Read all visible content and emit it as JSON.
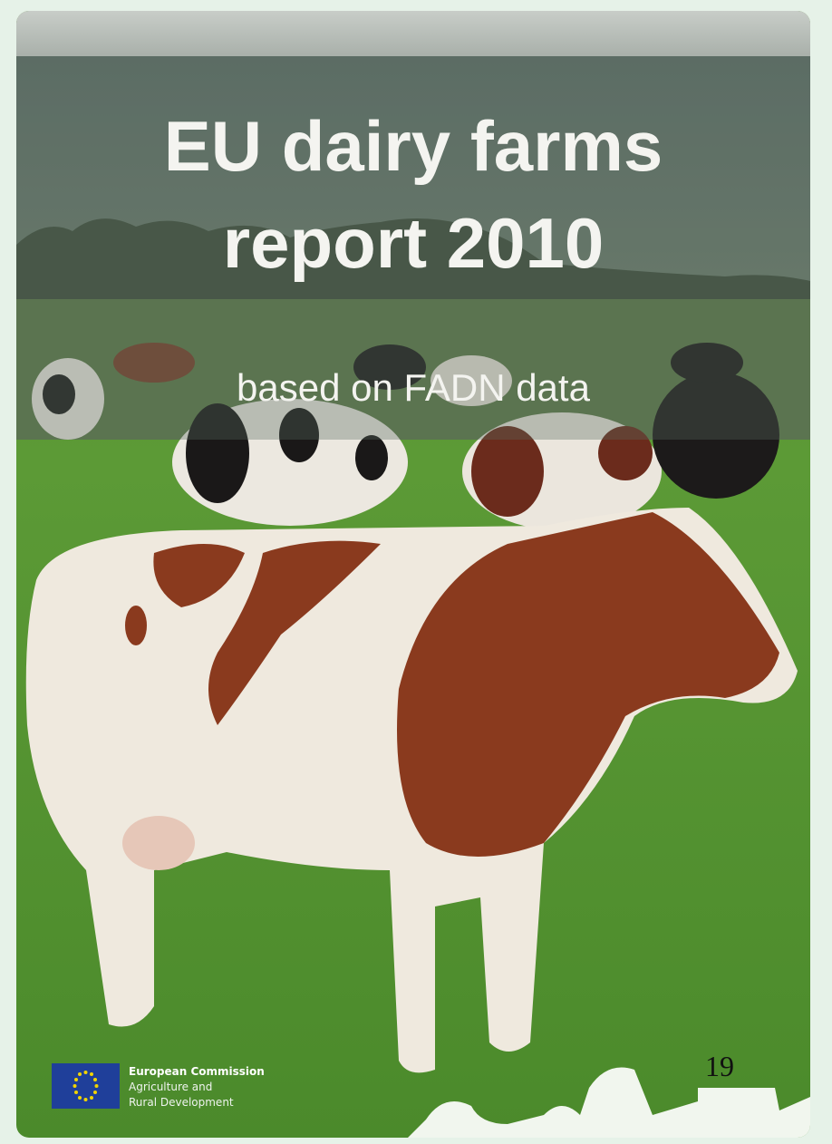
{
  "cover": {
    "title_lines": [
      "EU dairy farms",
      "report 2010"
    ],
    "subtitle": "based on FADN data",
    "publisher": {
      "name": "European Commission",
      "department_lines": [
        "Agriculture and",
        "Rural Development"
      ]
    },
    "page_number": 19
  }
}
